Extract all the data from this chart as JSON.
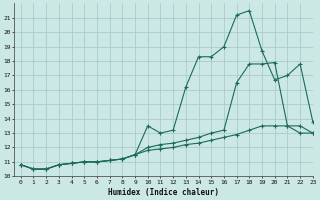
{
  "xlabel": "Humidex (Indice chaleur)",
  "bg_color": "#cce8e4",
  "grid_color": "#aacccc",
  "line_color": "#1a6b5a",
  "xlim": [
    -0.5,
    23
  ],
  "ylim": [
    10,
    22
  ],
  "yticks": [
    10,
    11,
    12,
    13,
    14,
    15,
    16,
    17,
    18,
    19,
    20,
    21
  ],
  "xticks": [
    0,
    1,
    2,
    3,
    4,
    5,
    6,
    7,
    8,
    9,
    10,
    11,
    12,
    13,
    14,
    15,
    16,
    17,
    18,
    19,
    20,
    21,
    22,
    23
  ],
  "series1_x": [
    0,
    1,
    2,
    3,
    4,
    5,
    6,
    7,
    8,
    9,
    10,
    11,
    12,
    13,
    14,
    15,
    16,
    17,
    18,
    19,
    20,
    21,
    22,
    23
  ],
  "series1_y": [
    10.8,
    10.5,
    10.5,
    10.8,
    10.9,
    11.0,
    11.0,
    11.1,
    11.2,
    11.5,
    13.5,
    13.0,
    13.2,
    16.2,
    18.3,
    18.3,
    19.0,
    21.2,
    21.5,
    18.7,
    16.7,
    17.0,
    17.8,
    13.8
  ],
  "series2_x": [
    0,
    1,
    2,
    3,
    4,
    5,
    6,
    7,
    8,
    9,
    10,
    11,
    12,
    13,
    14,
    15,
    16,
    17,
    18,
    19,
    20,
    21,
    22,
    23
  ],
  "series2_y": [
    10.8,
    10.5,
    10.5,
    10.8,
    10.9,
    11.0,
    11.0,
    11.1,
    11.2,
    11.5,
    12.0,
    12.2,
    12.3,
    12.5,
    12.7,
    13.0,
    13.2,
    16.5,
    17.8,
    17.8,
    17.9,
    13.5,
    13.0,
    13.0
  ],
  "series3_x": [
    0,
    1,
    2,
    3,
    4,
    5,
    6,
    7,
    8,
    9,
    10,
    11,
    12,
    13,
    14,
    15,
    16,
    17,
    18,
    19,
    20,
    21,
    22,
    23
  ],
  "series3_y": [
    10.8,
    10.5,
    10.5,
    10.8,
    10.9,
    11.0,
    11.0,
    11.1,
    11.2,
    11.5,
    11.8,
    11.9,
    12.0,
    12.2,
    12.3,
    12.5,
    12.7,
    12.9,
    13.2,
    13.5,
    13.5,
    13.5,
    13.5,
    13.0
  ]
}
